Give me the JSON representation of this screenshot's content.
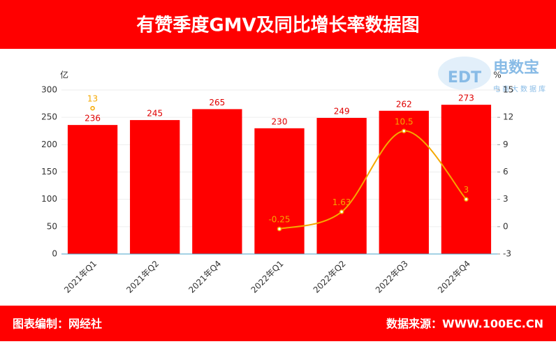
{
  "header": {
    "title": "有赞季度GMV及同比增长率数据图"
  },
  "footer": {
    "left": "图表编制：网经社",
    "right": "数据来源：WWW.100EC.CN"
  },
  "logo": {
    "mark": "EDT",
    "text": "电数宝",
    "tagline": "电商大数据库"
  },
  "chart_data": {
    "type": "bar-line",
    "y_label": "亿",
    "y2_label": "%",
    "categories": [
      "2021年Q1",
      "2021年Q2",
      "2021年Q4",
      "2022年Q1",
      "2022年Q2",
      "2022年Q3",
      "2022年Q4"
    ],
    "series": [
      {
        "type": "bar",
        "color": "#ff0000",
        "values": [
          236,
          245,
          265,
          230,
          249,
          262,
          273
        ]
      },
      {
        "type": "line",
        "axis": "y2",
        "color": "#f5a800",
        "values": [
          13,
          null,
          null,
          -0.25,
          1.63,
          10.5,
          3
        ]
      }
    ],
    "ylim": [
      0,
      300
    ],
    "yticks": [
      0,
      50,
      100,
      150,
      200,
      250,
      300
    ],
    "y2lim": [
      -3,
      15
    ],
    "y2ticks": [
      -3,
      0,
      3,
      6,
      9,
      12,
      15
    ],
    "grid": true
  }
}
